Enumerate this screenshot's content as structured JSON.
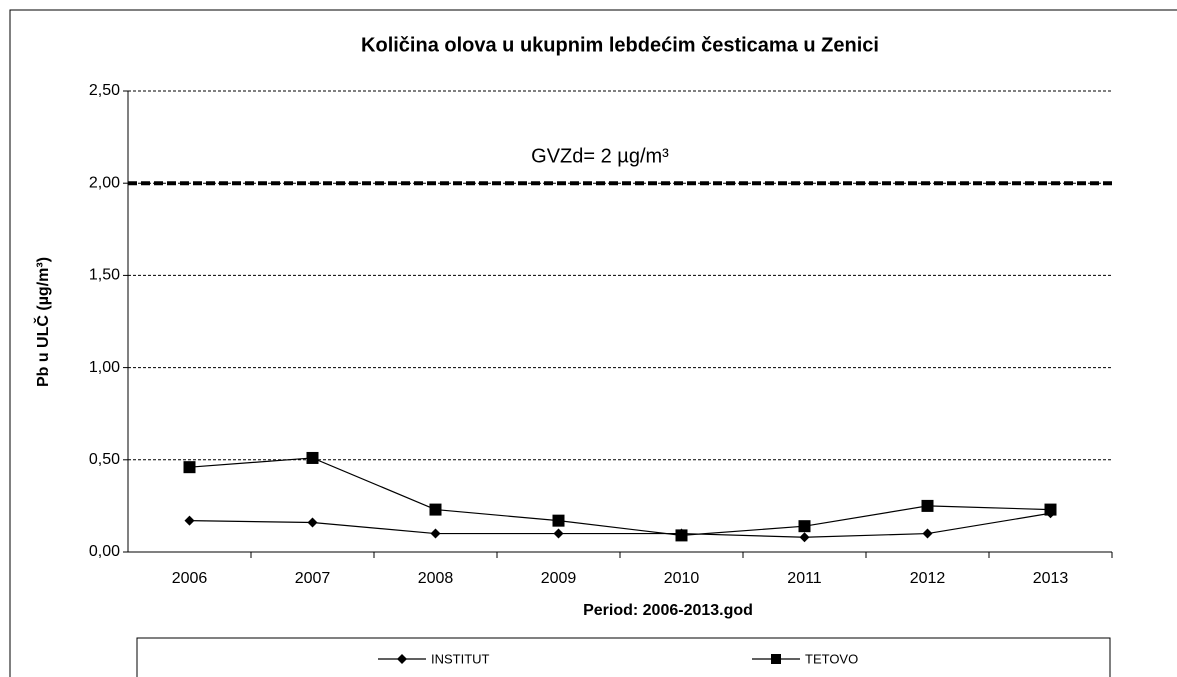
{
  "chart_data": {
    "type": "line",
    "title": "Količina olova u ukupnim lebdećim česticama u Zenici",
    "x_label": "Period: 2006-2013.god",
    "y_label": "Pb u ULČ (µg/m³)",
    "categories": [
      "2006",
      "2007",
      "2008",
      "2009",
      "2010",
      "2011",
      "2012",
      "2013"
    ],
    "series": [
      {
        "name": "INSTITUT",
        "color": "#000000",
        "marker": "diamond",
        "values": [
          0.17,
          0.16,
          0.1,
          0.1,
          0.1,
          0.08,
          0.1,
          0.21
        ]
      },
      {
        "name": "TETOVO",
        "color": "#000000",
        "marker": "square",
        "values": [
          0.46,
          0.51,
          0.23,
          0.17,
          0.09,
          0.14,
          0.25,
          0.23
        ]
      }
    ],
    "ylim": [
      0,
      2.5
    ],
    "yticks": [
      {
        "value": 0,
        "label": "0,00"
      },
      {
        "value": 0.5,
        "label": "0,50"
      },
      {
        "value": 1,
        "label": "1,00"
      },
      {
        "value": 1.5,
        "label": "1,50"
      },
      {
        "value": 2,
        "label": "2,00"
      },
      {
        "value": 2.5,
        "label": "2,50"
      }
    ],
    "grid": true,
    "limit_line": {
      "value": 2,
      "label": "GVZd= 2 µg/m³"
    },
    "legend": "bottom"
  }
}
